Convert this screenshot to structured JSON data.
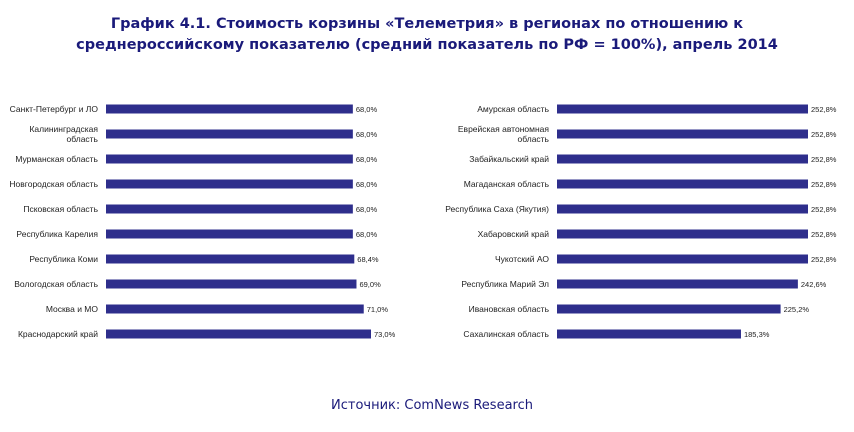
{
  "title_line1": "График 4.1. Стоимость корзины «Телеметрия» в регионах по отношению к",
  "title_line2": "среднероссийскому показателю (средний показатель по РФ = 100%), апрель 2014",
  "source": "Источник: ComNews Research",
  "bar_color": "#2e2e8c",
  "chart_data": [
    {
      "type": "bar",
      "orientation": "horizontal",
      "categories": [
        [
          "Санкт-Петербург и ЛО"
        ],
        [
          "Калининградская",
          "область"
        ],
        [
          "Мурманская область"
        ],
        [
          "Новгородская область"
        ],
        [
          "Псковская область"
        ],
        [
          "Республика Карелия"
        ],
        [
          "Республика Коми"
        ],
        [
          "Вологодская область"
        ],
        [
          "Москва и МО"
        ],
        [
          "Краснодарский край"
        ]
      ],
      "values": [
        68.0,
        68.0,
        68.0,
        68.0,
        68.0,
        68.0,
        68.4,
        69.0,
        71.0,
        73.0
      ],
      "value_labels": [
        "68,0%",
        "68,0%",
        "68,0%",
        "68,0%",
        "68,0%",
        "68,0%",
        "68,4%",
        "69,0%",
        "71,0%",
        "73,0%"
      ]
    },
    {
      "type": "bar",
      "orientation": "horizontal",
      "categories": [
        [
          "Амурская область"
        ],
        [
          "Еврейская автономная",
          "область"
        ],
        [
          "Забайкальский край"
        ],
        [
          "Магаданская область"
        ],
        [
          "Республика Саха (Якутия)"
        ],
        [
          "Хабаровский край"
        ],
        [
          "Чукотский АО"
        ],
        [
          "Республика Марий Эл"
        ],
        [
          "Ивановская область"
        ],
        [
          "Сахалинская область"
        ]
      ],
      "values": [
        252.8,
        252.8,
        252.8,
        252.8,
        252.8,
        252.8,
        252.8,
        242.6,
        225.2,
        185.3
      ],
      "value_labels": [
        "252,8%",
        "252,8%",
        "252,8%",
        "252,8%",
        "252,8%",
        "252,8%",
        "252,8%",
        "242,6%",
        "225,2%",
        "185,3%"
      ]
    }
  ]
}
